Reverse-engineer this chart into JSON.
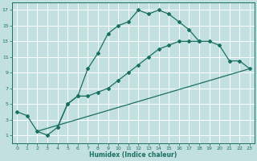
{
  "xlabel": "Humidex (Indice chaleur)",
  "bg_color": "#c2e0e0",
  "grid_color": "#ffffff",
  "line_color": "#1a7060",
  "xlim": [
    -0.5,
    23.5
  ],
  "ylim": [
    0,
    18
  ],
  "xticks": [
    0,
    1,
    2,
    3,
    4,
    5,
    6,
    7,
    8,
    9,
    10,
    11,
    12,
    13,
    14,
    15,
    16,
    17,
    18,
    19,
    20,
    21,
    22,
    23
  ],
  "yticks": [
    1,
    3,
    5,
    7,
    9,
    11,
    13,
    15,
    17
  ],
  "line1_x": [
    0,
    1,
    2,
    3,
    4,
    5,
    6,
    7,
    8,
    9,
    10,
    11,
    12,
    13,
    14,
    15,
    16,
    17,
    18,
    19,
    20,
    21,
    22,
    23
  ],
  "line1_y": [
    4,
    3.5,
    1.5,
    1,
    2,
    5,
    6,
    9.5,
    11.5,
    14,
    15,
    15.5,
    17,
    16.5,
    17,
    16.5,
    15.5,
    14.5,
    13,
    null,
    null,
    null,
    null,
    null
  ],
  "line2b_x": [
    4,
    5,
    6,
    7,
    8,
    9,
    10,
    11,
    12,
    13,
    14,
    15,
    16,
    17,
    18,
    19,
    20,
    21,
    22,
    23
  ],
  "line2b_y": [
    2,
    5,
    6,
    6,
    6.5,
    7,
    8,
    9,
    10,
    11,
    12,
    12.5,
    13,
    13,
    13,
    13,
    12.5,
    10.5,
    10.5,
    9.5
  ],
  "line3_x": [
    2,
    23
  ],
  "line3_y": [
    1.5,
    9.5
  ]
}
